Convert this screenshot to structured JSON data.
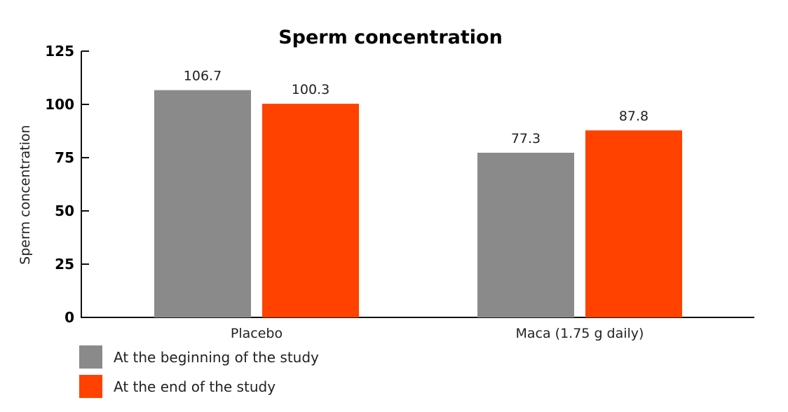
{
  "chart_data": {
    "type": "bar",
    "title": "Sperm concentration",
    "xlabel": "",
    "ylabel": "Sperm concentration",
    "ylim": [
      0,
      125
    ],
    "yticks": [
      0,
      25,
      50,
      75,
      100,
      125
    ],
    "categories": [
      "Placebo",
      "Maca (1.75 g daily)"
    ],
    "series": [
      {
        "name": "At the beginning of the study",
        "color": "#8a8a8a",
        "values": [
          106.7,
          77.3
        ]
      },
      {
        "name": "At the end of the study",
        "color": "#ff4200",
        "values": [
          100.3,
          87.8
        ]
      }
    ],
    "grid": false,
    "legend": "bottom-left"
  }
}
